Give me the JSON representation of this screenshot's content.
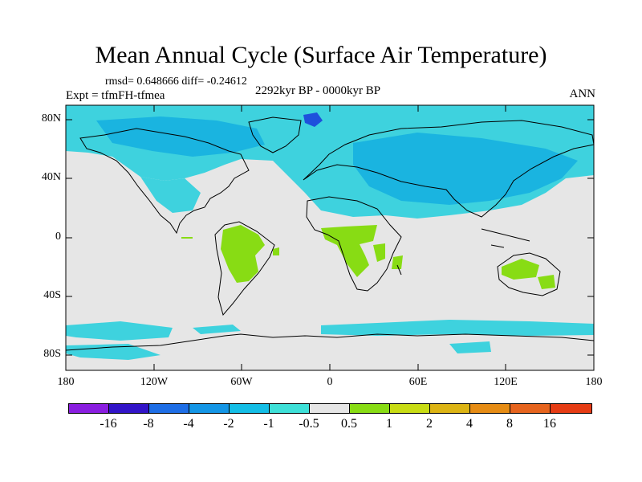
{
  "figure": {
    "title": "Mean Annual Cycle (Surface Air Temperature)",
    "stats": "rmsd= 0.648666 diff= -0.24612",
    "experiment": "Expt = tfmFH-tfmea",
    "period": "2292kyr BP - 0000kyr BP",
    "season": "ANN"
  },
  "axes": {
    "lat_labels": [
      "80N",
      "40N",
      "0",
      "40S",
      "80S"
    ],
    "lon_labels": [
      "180",
      "120W",
      "60W",
      "0",
      "60E",
      "120E",
      "180"
    ]
  },
  "legend": {
    "colors": [
      "#8a1ee0",
      "#3214c8",
      "#1e6ee6",
      "#1496e6",
      "#14bee6",
      "#3ee0d8",
      "#e6e6e6",
      "#88dc14",
      "#c8dc14",
      "#dcb414",
      "#e68c14",
      "#e6641e",
      "#e63c14"
    ],
    "labels": [
      "-16",
      "-8",
      "-4",
      "-2",
      "-1",
      "-0.5",
      "0.5",
      "1",
      "2",
      "4",
      "8",
      "16"
    ]
  },
  "map_colors": {
    "background": "#e6e6e6",
    "cool_band": "#3ed2de",
    "cool_dark": "#1ab4e0",
    "cool_deep": "#1e50dc",
    "warm": "#88dc14",
    "coast": "#000000"
  }
}
